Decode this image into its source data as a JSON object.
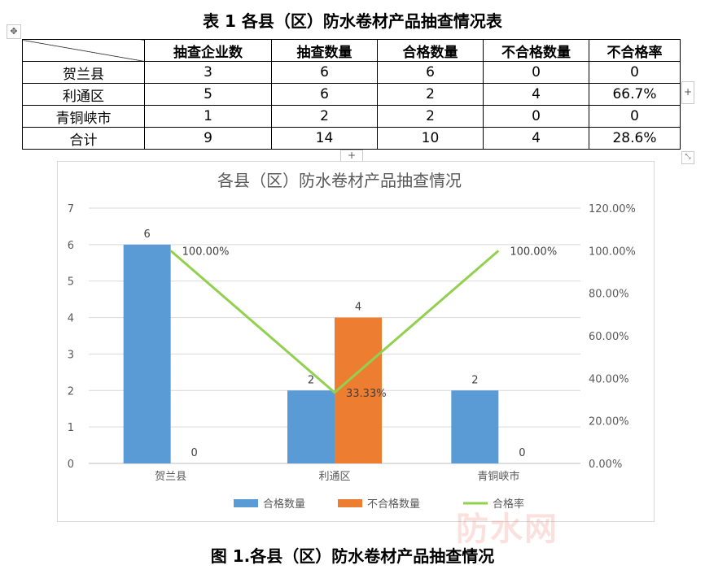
{
  "table": {
    "title": "表 1 各县（区）防水卷材产品抽查情况表",
    "headers": [
      "",
      "抽查企业数",
      "抽查数量",
      "合格数量",
      "不合格数量",
      "不合格率"
    ],
    "rows": [
      [
        "贺兰县",
        "3",
        "6",
        "6",
        "0",
        "0"
      ],
      [
        "利通区",
        "5",
        "6",
        "2",
        "4",
        "66.7%"
      ],
      [
        "青铜峡市",
        "1",
        "2",
        "2",
        "0",
        "0"
      ],
      [
        "合计",
        "9",
        "14",
        "10",
        "4",
        "28.6%"
      ]
    ]
  },
  "handles": {
    "move": "✥",
    "add_col": "+",
    "add_row": "+",
    "resize": "⤡"
  },
  "chart_data": {
    "type": "bar",
    "title": "各县（区）防水卷材产品抽查情况",
    "categories": [
      "贺兰县",
      "利通区",
      "青铜峡市"
    ],
    "series": [
      {
        "name": "合格数量",
        "kind": "bar",
        "axis": "left",
        "color": "#5b9bd5",
        "values": [
          6,
          2,
          2
        ]
      },
      {
        "name": "不合格数量",
        "kind": "bar",
        "axis": "left",
        "color": "#ed7d31",
        "values": [
          0,
          4,
          0
        ]
      },
      {
        "name": "合格率",
        "kind": "line",
        "axis": "right",
        "color": "#92d050",
        "values": [
          100.0,
          33.33,
          100.0
        ],
        "labels": [
          "100.00%",
          "33.33%",
          "100.00%"
        ]
      }
    ],
    "y_left": {
      "min": 0,
      "max": 7,
      "ticks": [
        "0",
        "1",
        "2",
        "3",
        "4",
        "5",
        "6",
        "7"
      ]
    },
    "y_right": {
      "min": 0,
      "max": 120,
      "ticks": [
        "0.00%",
        "20.00%",
        "40.00%",
        "60.00%",
        "80.00%",
        "100.00%",
        "120.00%"
      ]
    },
    "grid": true,
    "legend": "bottom"
  },
  "figure_caption": "图 1.各县（区）防水卷材产品抽查情况",
  "watermark": "防水网"
}
